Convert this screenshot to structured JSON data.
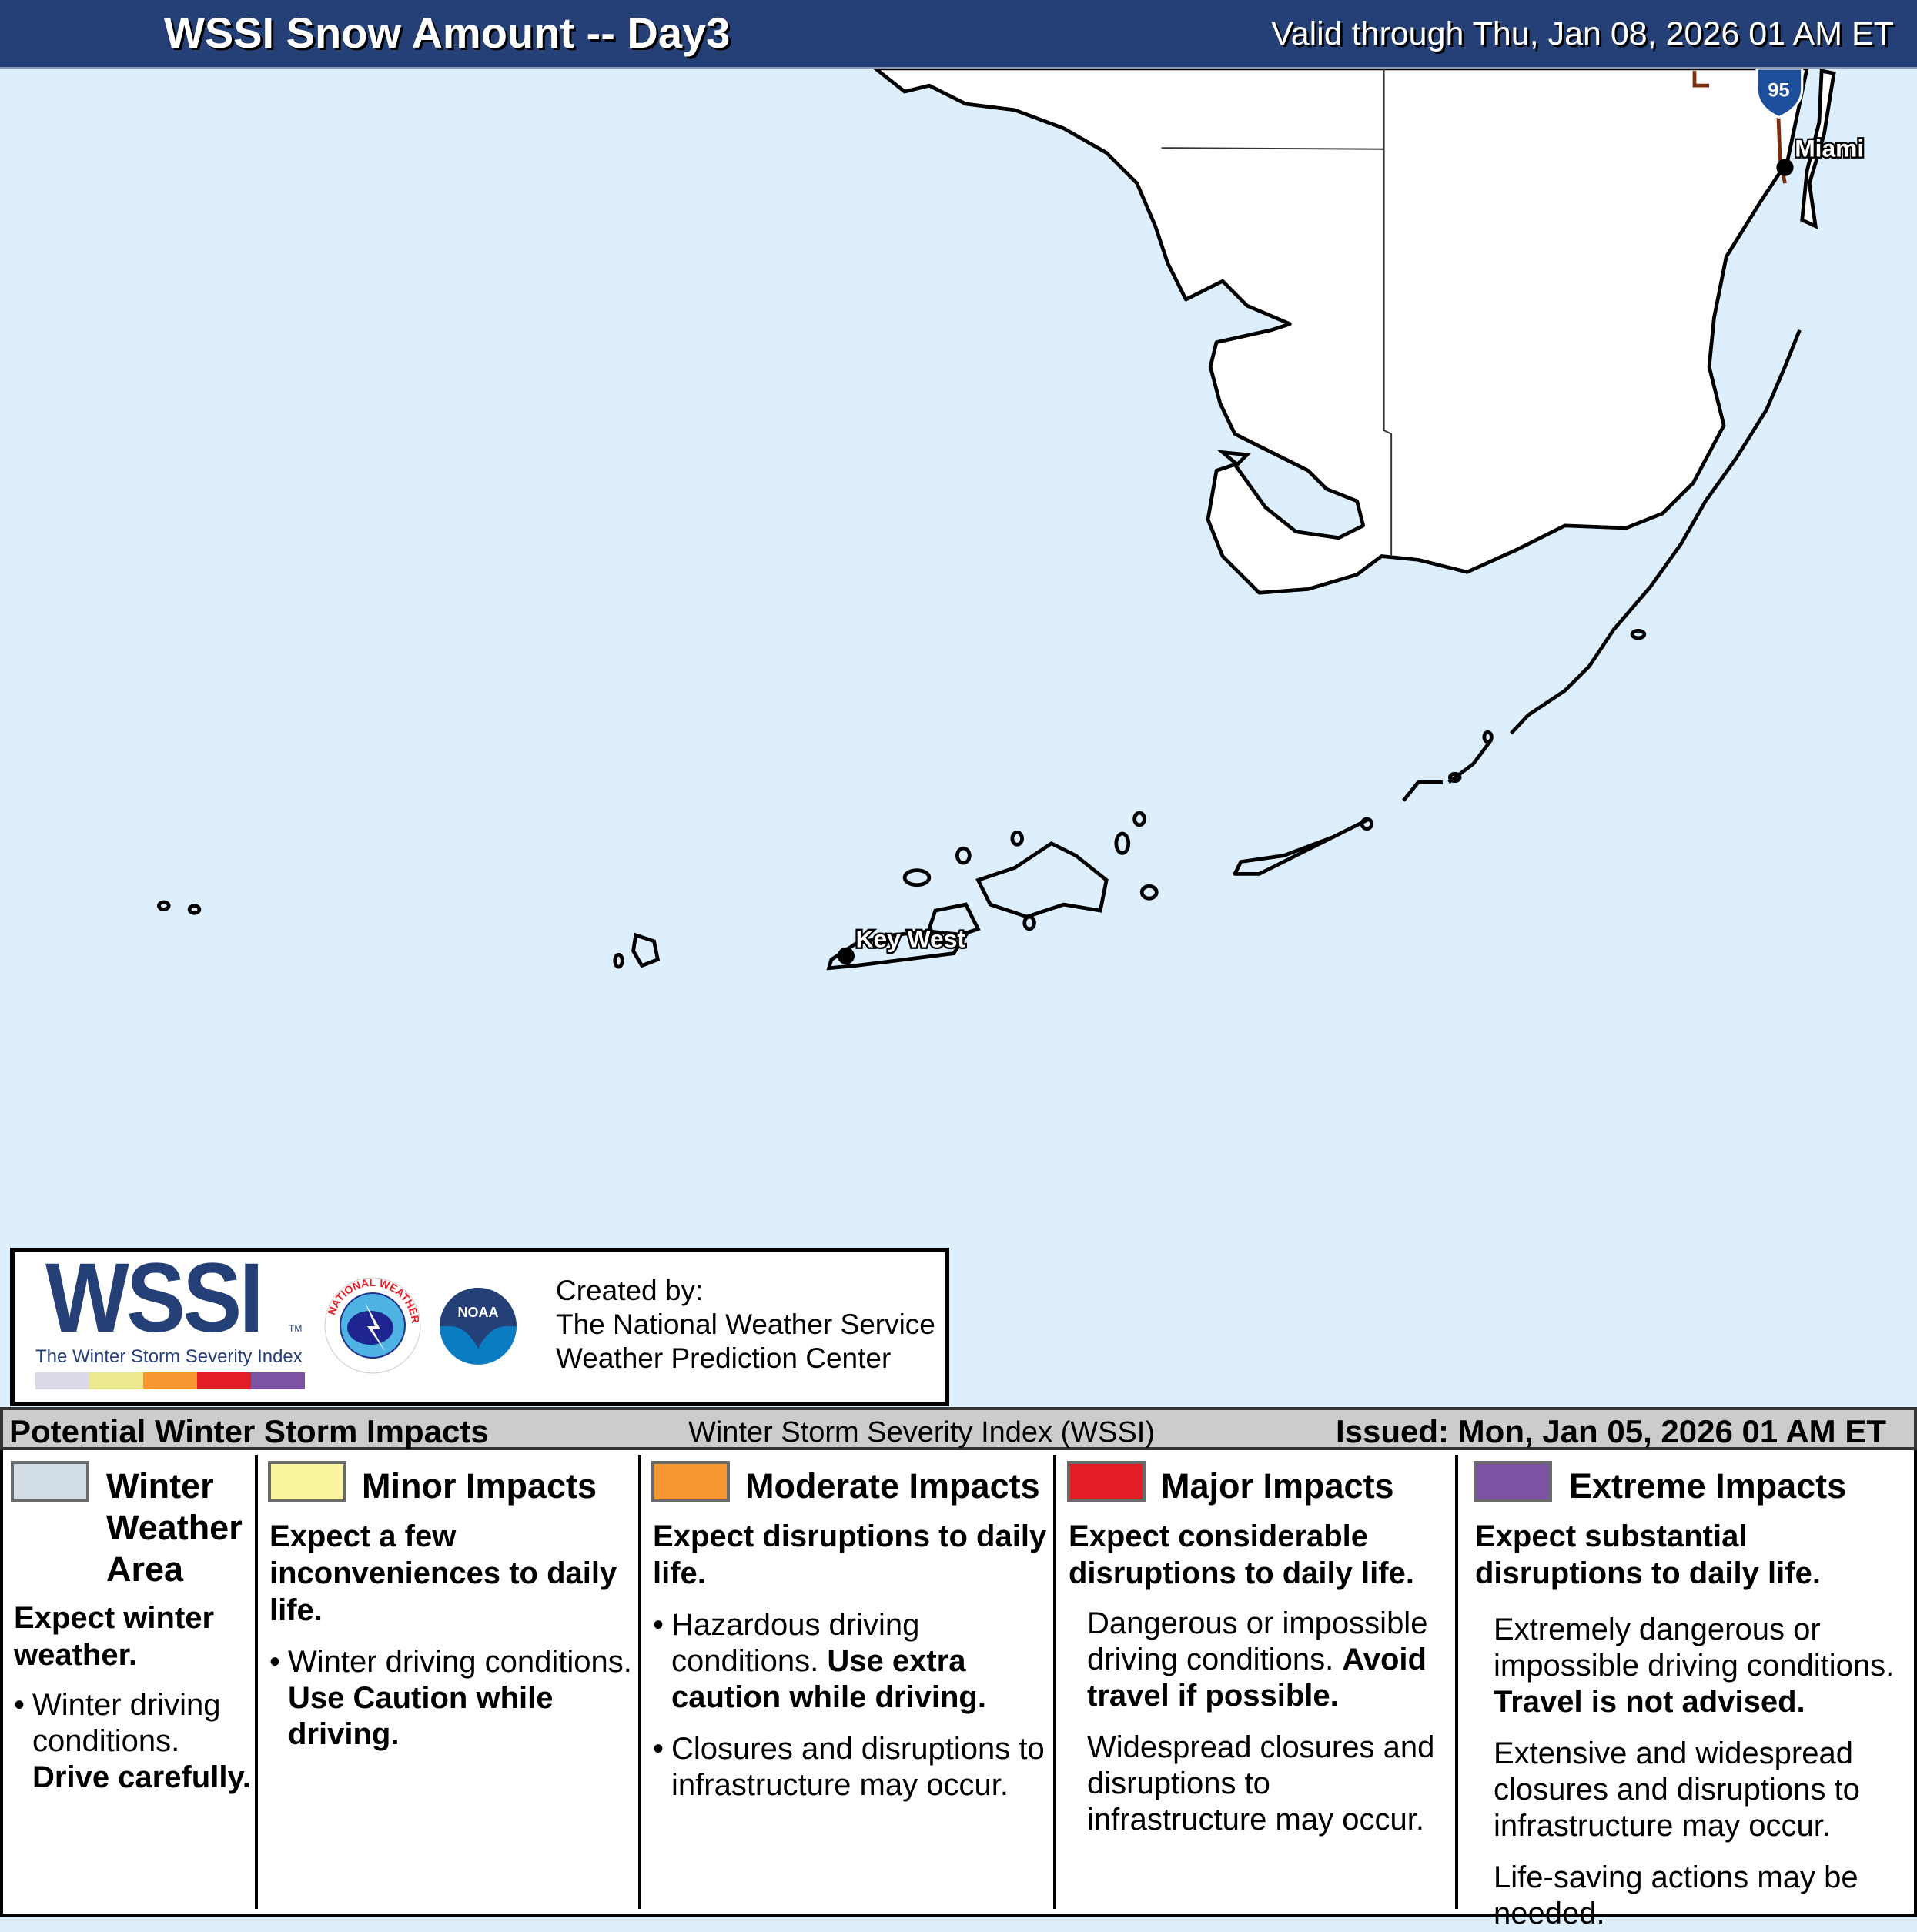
{
  "header": {
    "title": "WSSI Snow Amount -- Day3",
    "valid": "Valid through Thu, Jan 08, 2026 01 AM ET"
  },
  "map": {
    "cities": [
      {
        "name": "Miami"
      },
      {
        "name": "Key West"
      }
    ],
    "interstate": "95",
    "colors": {
      "water": "#ddeffd",
      "land": "#ffffff",
      "coast": "#000000",
      "highway": "#7a2e0e",
      "shield": "#1e4f9c"
    }
  },
  "logo": {
    "wssi": "WSSI",
    "tm": "TM",
    "subtitle": "The Winter Storm Severity Index",
    "bar_colors": [
      "#d9d9e8",
      "#ebe98f",
      "#f7972f",
      "#e31d25",
      "#7b53a2"
    ],
    "nws_text": "NATIONAL WEATHER SERVICE",
    "noaa_text": "NOAA"
  },
  "credits": {
    "line1": "Created by:",
    "line2": "The National Weather Service",
    "line3": "Weather Prediction Center"
  },
  "impacts": {
    "title": "Potential Winter Storm Impacts",
    "index_name": "Winter Storm Severity Index (WSSI)",
    "issued": "Issued: Mon, Jan 05, 2026 01 AM ET"
  },
  "columns": [
    {
      "title": "Winter Weather Area",
      "color": "#d3dde6",
      "headline": "Expect winter weather.",
      "items": [
        {
          "text": "Winter driving conditions.",
          "bold": "Drive carefully."
        }
      ]
    },
    {
      "title": "Minor Impacts",
      "color": "#fbf5a0",
      "headline": "Expect a few inconveniences to daily life.",
      "items": [
        {
          "text": "Winter driving conditions.",
          "bold": "Use Caution while driving."
        }
      ]
    },
    {
      "title": "Moderate Impacts",
      "color": "#f7972f",
      "headline": "Expect disruptions to daily life.",
      "items": [
        {
          "text": "Hazardous driving conditions.",
          "bold": "Use extra caution while driving."
        },
        {
          "text": "Closures and disruptions to infrastructure may occur."
        }
      ]
    },
    {
      "title": "Major Impacts",
      "color": "#e31d25",
      "headline": "Expect considerable disruptions to daily life.",
      "items": [
        {
          "text": "Dangerous or impossible driving conditions.",
          "bold": "Avoid travel if possible."
        },
        {
          "text": "Widespread closures and disruptions to infrastructure may occur."
        }
      ]
    },
    {
      "title": "Extreme Impacts",
      "color": "#7b53a2",
      "headline": "Expect substantial disruptions to daily life.",
      "items": [
        {
          "text": "Extremely dangerous or impossible driving conditions.",
          "bold": "Travel is not advised."
        },
        {
          "text": "Extensive and widespread closures and disruptions to infrastructure may occur."
        },
        {
          "text": "Life-saving actions may be needed."
        }
      ]
    }
  ]
}
